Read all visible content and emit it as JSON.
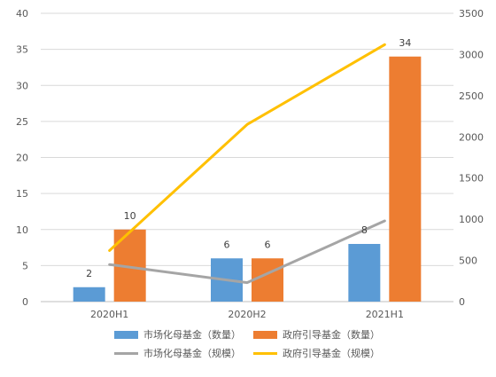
{
  "chart_data": {
    "type": "bar",
    "categories": [
      "2020H1",
      "2020H2",
      "2021H1"
    ],
    "y_left": {
      "min": 0,
      "max": 40,
      "step": 5,
      "ticks": [
        "0",
        "5",
        "10",
        "15",
        "20",
        "25",
        "30",
        "35",
        "40"
      ]
    },
    "y_right": {
      "min": 0,
      "max": 3500,
      "step": 500,
      "ticks": [
        "0",
        "500",
        "1000",
        "1500",
        "2000",
        "2500",
        "3000",
        "3500"
      ]
    },
    "grid": true,
    "legend_position": "bottom",
    "bar_series": [
      {
        "name": "市场化母基金（数量）",
        "color": "#5B9BD5",
        "values": [
          2,
          6,
          8
        ],
        "labels": [
          "2",
          "6",
          "8"
        ]
      },
      {
        "name": "政府引导基金（数量）",
        "color": "#ED7D31",
        "values": [
          10,
          6,
          34
        ],
        "labels": [
          "10",
          "6",
          "34"
        ]
      }
    ],
    "line_series": [
      {
        "name": "市场化母基金（规模）",
        "color": "#A5A5A5",
        "axis": "right",
        "values": [
          450,
          230,
          980
        ]
      },
      {
        "name": "政府引导基金（规模）",
        "color": "#FFC000",
        "axis": "right",
        "values": [
          620,
          2150,
          3120
        ]
      }
    ]
  }
}
